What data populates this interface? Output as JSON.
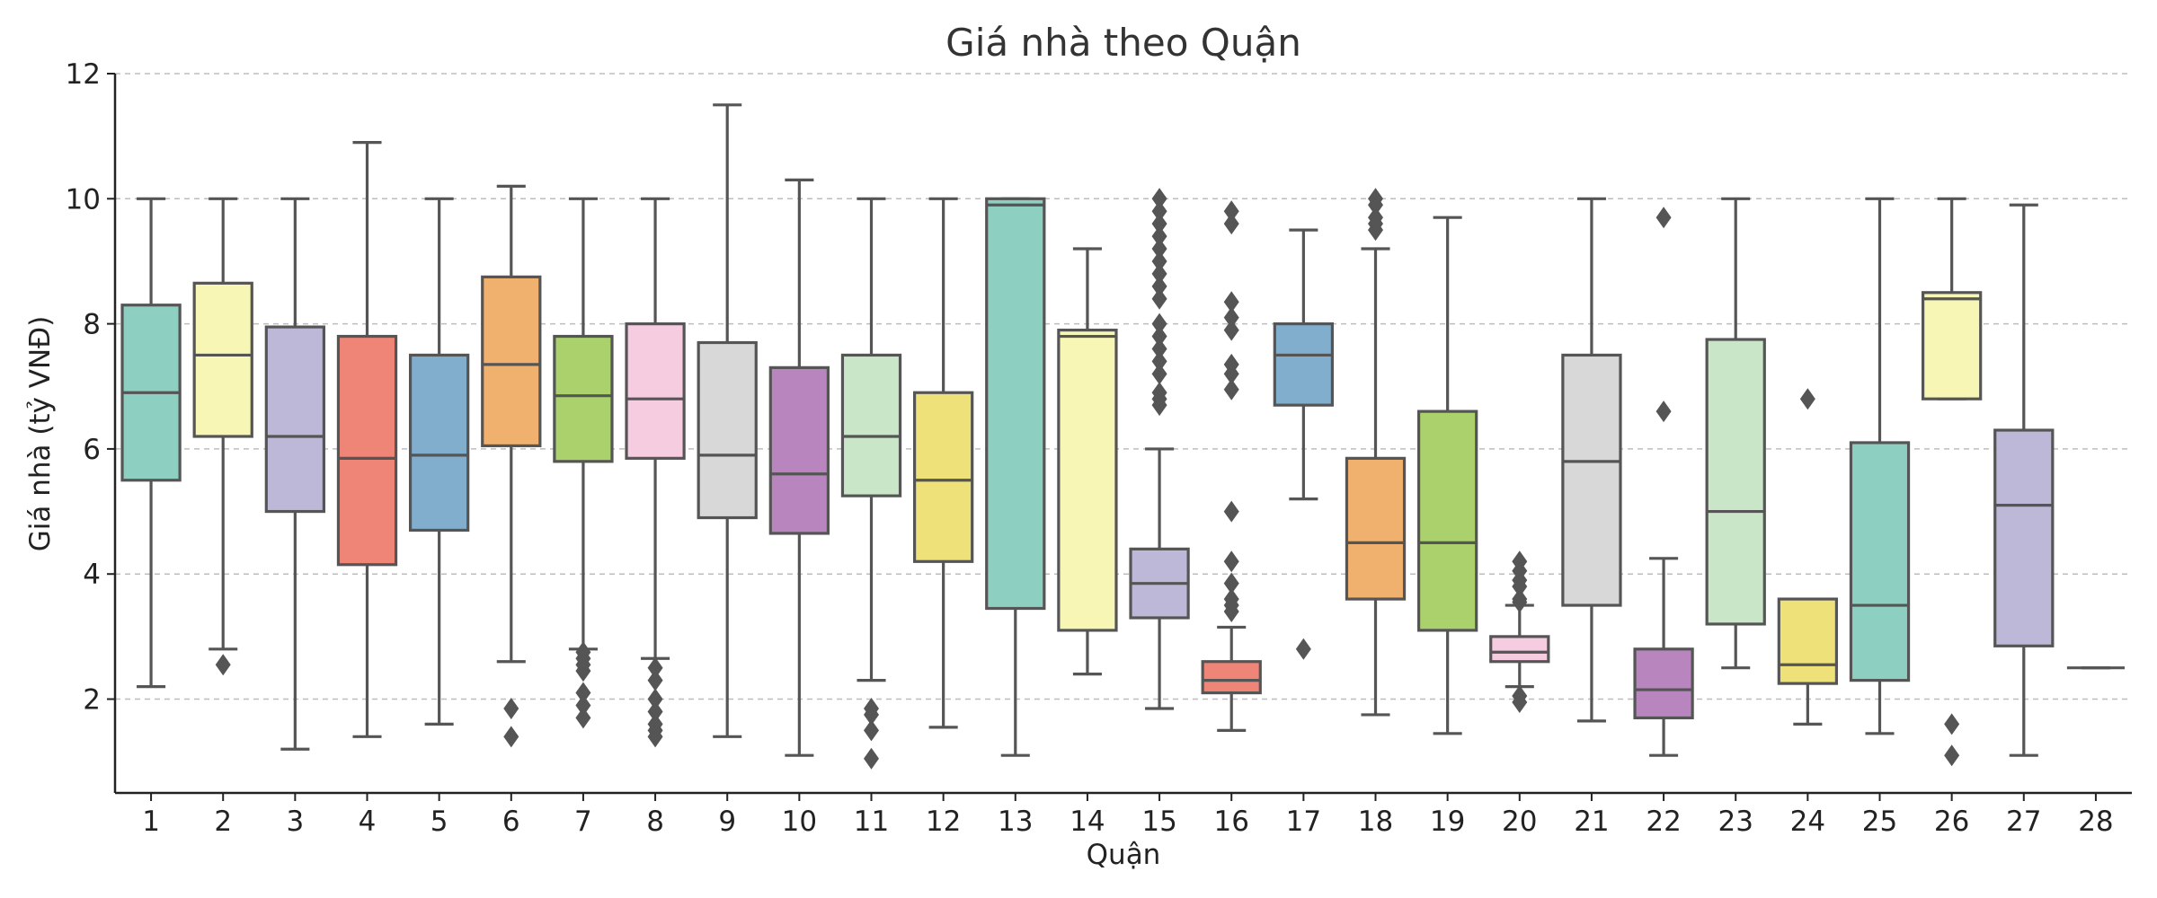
{
  "chart_data": {
    "type": "box",
    "title": "Giá nhà theo Quận",
    "xlabel": "Quận",
    "ylabel": "Giá nhà (tỷ VNĐ)",
    "ylim": [
      0.5,
      12
    ],
    "yticks": [
      2,
      4,
      6,
      8,
      10,
      12
    ],
    "grid": "horizontal dashed",
    "categories": [
      "1",
      "2",
      "3",
      "4",
      "5",
      "6",
      "7",
      "8",
      "9",
      "10",
      "11",
      "12",
      "13",
      "14",
      "15",
      "16",
      "17",
      "18",
      "19",
      "20",
      "21",
      "22",
      "23",
      "24",
      "25",
      "26",
      "27",
      "28"
    ],
    "colors": [
      "#8dcfc1",
      "#f7f6b4",
      "#bdb8d7",
      "#ee8577",
      "#82aecd",
      "#f1b16e",
      "#aad16c",
      "#f6cce1",
      "#d8d8d8",
      "#b885be",
      "#c9e6c8",
      "#efe17a",
      "#8dcfc1",
      "#f7f6b4",
      "#bdb8d7",
      "#ee8577",
      "#82aecd",
      "#f1b16e",
      "#aad16c",
      "#f6cce1",
      "#d8d8d8",
      "#b885be",
      "#c9e6c8",
      "#efe17a",
      "#8dcfc1",
      "#f7f6b4",
      "#bdb8d7",
      "#ee8577"
    ],
    "boxes": [
      {
        "whislo": 2.2,
        "q1": 5.5,
        "med": 6.9,
        "q3": 8.3,
        "whishi": 10.0,
        "fliers": []
      },
      {
        "whislo": 2.8,
        "q1": 6.2,
        "med": 7.5,
        "q3": 8.65,
        "whishi": 10.0,
        "fliers": [
          2.55
        ]
      },
      {
        "whislo": 1.2,
        "q1": 5.0,
        "med": 6.2,
        "q3": 7.95,
        "whishi": 10.0,
        "fliers": []
      },
      {
        "whislo": 1.4,
        "q1": 4.15,
        "med": 5.85,
        "q3": 7.8,
        "whishi": 10.9,
        "fliers": []
      },
      {
        "whislo": 1.6,
        "q1": 4.7,
        "med": 5.9,
        "q3": 7.5,
        "whishi": 10.0,
        "fliers": []
      },
      {
        "whislo": 2.6,
        "q1": 6.05,
        "med": 7.35,
        "q3": 8.75,
        "whishi": 10.2,
        "fliers": [
          1.85,
          1.4
        ]
      },
      {
        "whislo": 2.8,
        "q1": 5.8,
        "med": 6.85,
        "q3": 7.8,
        "whishi": 10.0,
        "fliers": [
          2.75,
          2.65,
          2.55,
          2.45,
          2.1,
          1.9,
          1.7
        ]
      },
      {
        "whislo": 2.65,
        "q1": 5.85,
        "med": 6.8,
        "q3": 8.0,
        "whishi": 10.0,
        "fliers": [
          2.5,
          2.3,
          2.0,
          1.8,
          1.6,
          1.5,
          1.4
        ]
      },
      {
        "whislo": 1.4,
        "q1": 4.9,
        "med": 5.9,
        "q3": 7.7,
        "whishi": 11.5,
        "fliers": []
      },
      {
        "whislo": 1.1,
        "q1": 4.65,
        "med": 5.6,
        "q3": 7.3,
        "whishi": 10.3,
        "fliers": []
      },
      {
        "whislo": 2.3,
        "q1": 5.25,
        "med": 6.2,
        "q3": 7.5,
        "whishi": 10.0,
        "fliers": [
          1.85,
          1.75,
          1.5,
          1.05
        ]
      },
      {
        "whislo": 1.55,
        "q1": 4.2,
        "med": 5.5,
        "q3": 6.9,
        "whishi": 10.0,
        "fliers": []
      },
      {
        "whislo": 1.1,
        "q1": 3.45,
        "med": 9.9,
        "q3": 10.0,
        "whishi": 10.0,
        "fliers": []
      },
      {
        "whislo": 2.4,
        "q1": 3.1,
        "med": 7.8,
        "q3": 7.9,
        "whishi": 9.2,
        "fliers": []
      },
      {
        "whislo": 1.85,
        "q1": 3.3,
        "med": 3.85,
        "q3": 4.4,
        "whishi": 6.0,
        "fliers": [
          10.0,
          9.8,
          9.6,
          9.4,
          9.2,
          9.0,
          8.8,
          8.6,
          8.4,
          8.0,
          7.8,
          7.6,
          7.4,
          7.2,
          6.9,
          6.8,
          6.7
        ]
      },
      {
        "whislo": 1.5,
        "q1": 2.1,
        "med": 2.3,
        "q3": 2.6,
        "whishi": 3.15,
        "fliers": [
          9.8,
          9.6,
          8.35,
          8.1,
          7.9,
          7.35,
          7.2,
          6.95,
          5.0,
          4.2,
          3.85,
          3.6,
          3.5,
          3.4
        ]
      },
      {
        "whislo": 5.2,
        "q1": 6.7,
        "med": 7.5,
        "q3": 8.0,
        "whishi": 9.5,
        "fliers": [
          2.8
        ]
      },
      {
        "whislo": 1.75,
        "q1": 3.6,
        "med": 4.5,
        "q3": 5.85,
        "whishi": 9.2,
        "fliers": [
          10.0,
          9.9,
          9.7,
          9.6,
          9.5
        ]
      },
      {
        "whislo": 1.45,
        "q1": 3.1,
        "med": 4.5,
        "q3": 6.6,
        "whishi": 9.7,
        "fliers": []
      },
      {
        "whislo": 2.2,
        "q1": 2.6,
        "med": 2.75,
        "q3": 3.0,
        "whishi": 3.5,
        "fliers": [
          4.2,
          4.05,
          3.9,
          3.8,
          3.6,
          3.55,
          2.05,
          1.95
        ]
      },
      {
        "whislo": 1.65,
        "q1": 3.5,
        "med": 5.8,
        "q3": 7.5,
        "whishi": 10.0,
        "fliers": []
      },
      {
        "whislo": 1.1,
        "q1": 1.7,
        "med": 2.15,
        "q3": 2.8,
        "whishi": 4.25,
        "fliers": [
          9.7,
          6.6
        ]
      },
      {
        "whislo": 2.5,
        "q1": 3.2,
        "med": 5.0,
        "q3": 7.75,
        "whishi": 10.0,
        "fliers": []
      },
      {
        "whislo": 1.6,
        "q1": 2.25,
        "med": 2.55,
        "q3": 3.6,
        "whishi": 3.6,
        "fliers": [
          6.8
        ]
      },
      {
        "whislo": 1.45,
        "q1": 2.3,
        "med": 3.5,
        "q3": 6.1,
        "whishi": 10.0,
        "fliers": []
      },
      {
        "whislo": 6.8,
        "q1": 6.8,
        "med": 8.4,
        "q3": 8.5,
        "whishi": 10.0,
        "fliers": [
          1.6,
          1.1
        ]
      },
      {
        "whislo": 1.1,
        "q1": 2.85,
        "med": 5.1,
        "q3": 6.3,
        "whishi": 9.9,
        "fliers": []
      },
      {
        "whislo": 2.5,
        "q1": 2.5,
        "med": 2.5,
        "q3": 2.5,
        "whishi": 2.5,
        "fliers": []
      }
    ]
  }
}
